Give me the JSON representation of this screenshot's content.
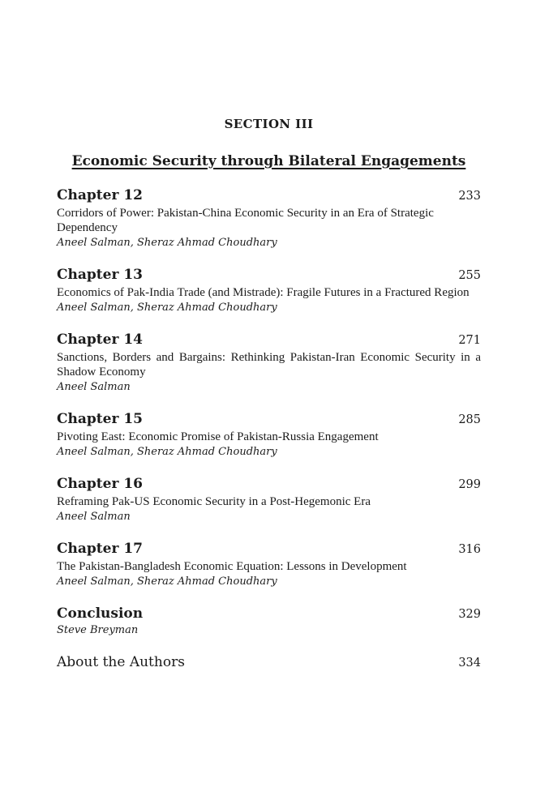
{
  "page": {
    "section_label": "SECTION III",
    "section_title": "Economic Security through Bilateral Engagements"
  },
  "toc": {
    "entries": [
      {
        "title": "Chapter 12",
        "page": "233",
        "description": "Corridors of Power: Pakistan-China Economic Security in an Era of Strategic Dependency",
        "authors": "Aneel Salman, Sheraz Ahmad Choudhary"
      },
      {
        "title": "Chapter 13",
        "page": "255",
        "description": "Economics of Pak-India Trade (and Mistrade): Fragile Futures in a Fractured Region",
        "authors": "Aneel Salman, Sheraz Ahmad Choudhary",
        "justified": true
      },
      {
        "title": "Chapter 14",
        "page": "271",
        "description": "Sanctions, Borders and Bargains: Rethinking Pakistan-Iran Economic Security in a Shadow Economy",
        "authors": "Aneel Salman",
        "justified": true
      },
      {
        "title": "Chapter 15",
        "page": "285",
        "description": "Pivoting East: Economic Promise of Pakistan-Russia Engagement",
        "authors": "Aneel Salman, Sheraz Ahmad Choudhary"
      },
      {
        "title": "Chapter 16",
        "page": "299",
        "description": "Reframing Pak-US Economic Security in a Post-Hegemonic Era",
        "authors": "Aneel Salman"
      },
      {
        "title": "Chapter 17",
        "page": "316",
        "description": "The Pakistan-Bangladesh Economic Equation: Lessons in Development",
        "authors": "Aneel Salman, Sheraz Ahmad Choudhary"
      },
      {
        "title": "Conclusion",
        "page": "329",
        "authors": "Steve Breyman"
      },
      {
        "title": "About the Authors",
        "page": "334",
        "plain_title": true
      }
    ]
  },
  "colors": {
    "text": "#1b1b1b",
    "background": "#ffffff"
  }
}
